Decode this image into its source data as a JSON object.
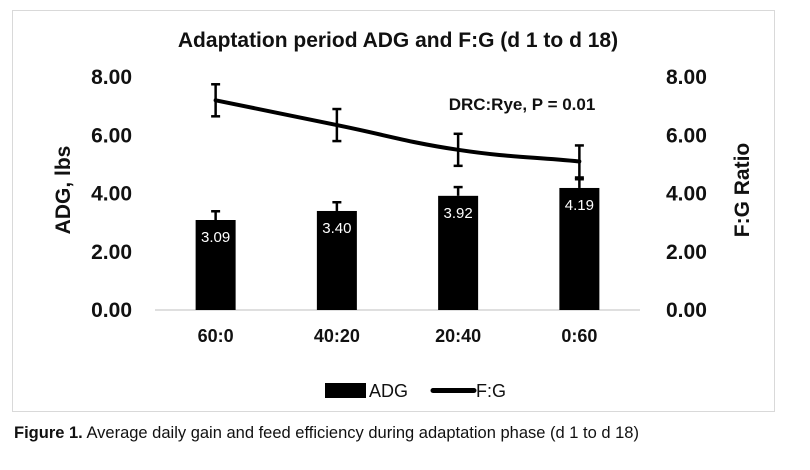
{
  "chart_data": {
    "type": "bar+line",
    "title": "Adaptation period ADG and F:G (d 1 to d 18)",
    "categories": [
      "60:0",
      "40:20",
      "20:40",
      "0:60"
    ],
    "ylabel_left": "ADG, lbs",
    "ylabel_right": "F:G Ratio",
    "ylim": [
      0,
      8
    ],
    "yticks": [
      "0.00",
      "2.00",
      "4.00",
      "6.00",
      "8.00"
    ],
    "series": [
      {
        "name": "ADG",
        "kind": "bar",
        "color": "#000000",
        "values": [
          3.09,
          3.4,
          3.92,
          4.19
        ],
        "labels": [
          "3.09",
          "3.40",
          "3.92",
          "4.19"
        ],
        "error": [
          0.3,
          0.3,
          0.3,
          0.3
        ]
      },
      {
        "name": "F:G",
        "kind": "line",
        "color": "#000000",
        "values": [
          7.2,
          6.35,
          5.5,
          5.1
        ],
        "error": [
          0.55,
          0.55,
          0.55,
          0.55
        ]
      }
    ],
    "annotation": "DRC:Rye, P = 0.01",
    "grid": false,
    "legend_position": "bottom"
  },
  "caption": {
    "label": "Figure 1.",
    "text": " Average daily gain and feed efficiency during adaptation phase (d 1 to d 18)"
  }
}
